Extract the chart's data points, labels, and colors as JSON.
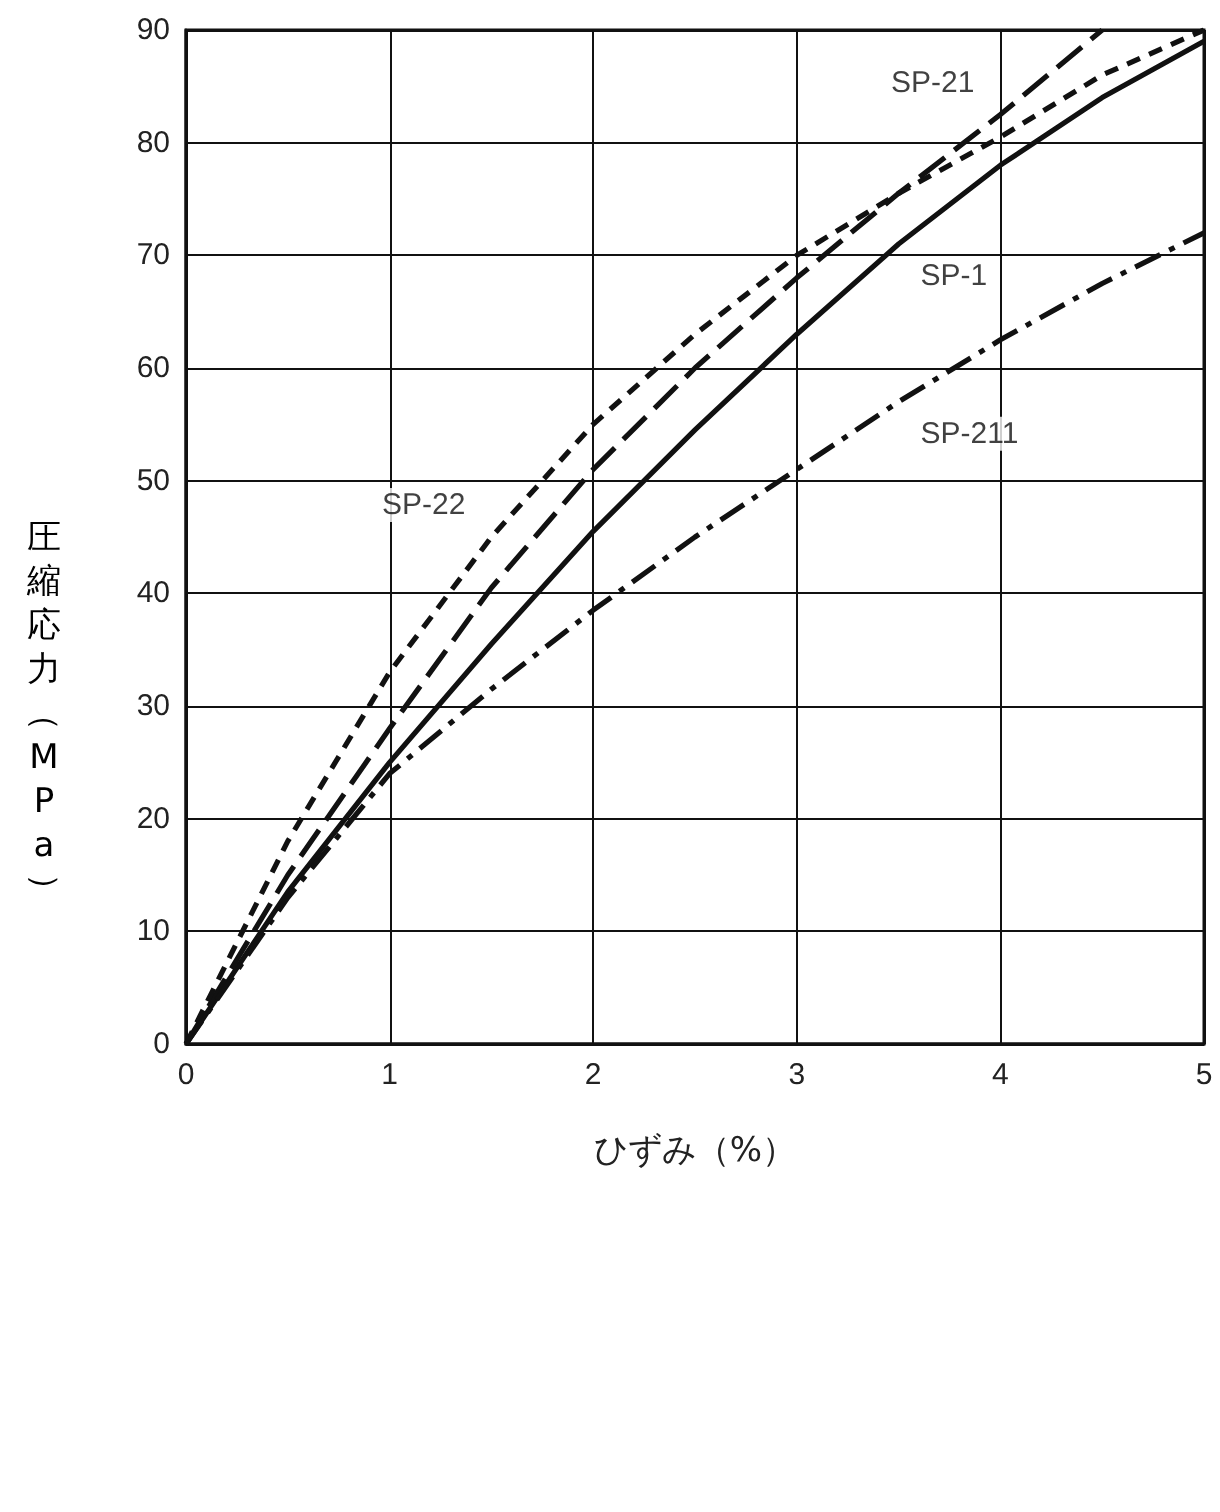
{
  "chart_data": {
    "type": "line",
    "xlabel": "ひずみ（%）",
    "ylabel": "圧縮応力（MPa）",
    "xlim": [
      0,
      5
    ],
    "xticks": [
      0,
      1,
      2,
      3,
      4,
      5
    ],
    "ylim": [
      0,
      90
    ],
    "yticks": [
      0,
      10,
      20,
      30,
      40,
      50,
      60,
      70,
      80,
      90
    ],
    "grid": true,
    "marker": "none",
    "series": [
      {
        "color": "#111111",
        "line_style": "solid",
        "x": [
          0,
          0.5,
          1,
          1.5,
          2,
          2.5,
          3,
          3.5,
          4,
          4.5,
          5
        ],
        "values": [
          0,
          13.5,
          25,
          35.5,
          45.5,
          54.5,
          63,
          71,
          78,
          84,
          89
        ]
      },
      {
        "color": "#111111",
        "line_style": "dashed",
        "x": [
          0,
          0.5,
          1,
          1.5,
          2,
          2.5,
          3,
          3.5,
          4,
          4.5
        ],
        "values": [
          0,
          15,
          28,
          40.5,
          51,
          60,
          68,
          75.5,
          82.5,
          90
        ]
      },
      {
        "color": "#111111",
        "line_style": "dotted",
        "x": [
          0,
          0.5,
          1,
          1.5,
          2,
          2.5,
          3,
          3.5,
          4,
          4.5,
          5
        ],
        "values": [
          0,
          18,
          33,
          45,
          55,
          63,
          70,
          75.5,
          80.5,
          86,
          90
        ]
      },
      {
        "color": "#111111",
        "line_style": "dashdot",
        "x": [
          0,
          0.5,
          1,
          1.5,
          2,
          2.5,
          3,
          3.5,
          4,
          4.5,
          5
        ],
        "values": [
          0,
          13,
          24,
          31.5,
          38.5,
          45,
          51,
          57,
          62.5,
          67.5,
          72
        ]
      }
    ],
    "annotations": [
      {
        "text": "SP-21",
        "x": 4,
        "y": 82.5
      },
      {
        "text": "SP-1",
        "x": 3.5,
        "y": 71
      },
      {
        "text": "SP-22",
        "x": 1.5,
        "y": 45
      },
      {
        "text": "SP-211",
        "x": 3.5,
        "y": 57
      }
    ]
  }
}
